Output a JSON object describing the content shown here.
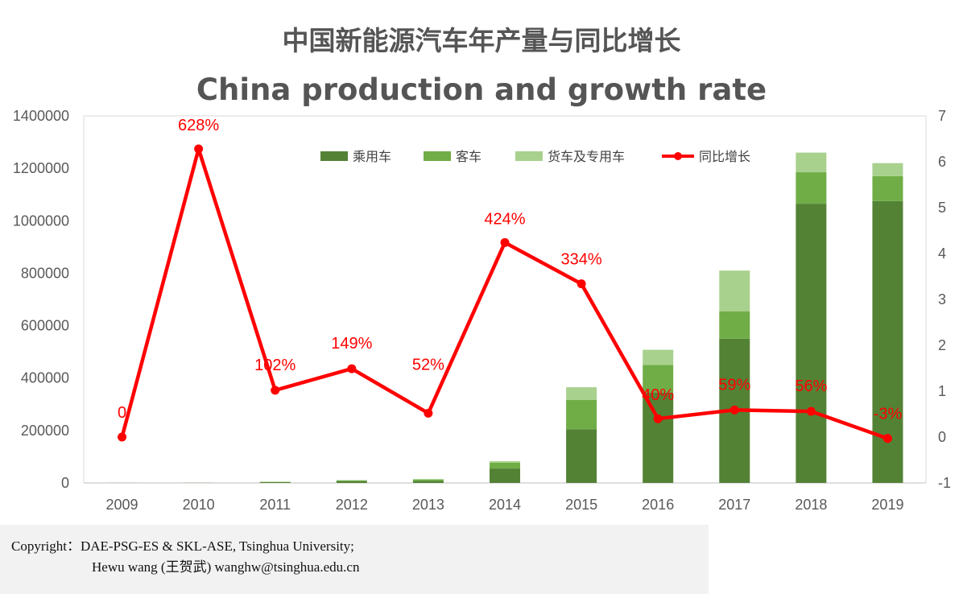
{
  "chart_data": {
    "type": "bar+line",
    "title": "中国新能源汽车年产量与同比增长",
    "subtitle": "China production and growth rate",
    "categories": [
      "2009",
      "2010",
      "2011",
      "2012",
      "2013",
      "2014",
      "2015",
      "2016",
      "2017",
      "2018",
      "2019"
    ],
    "series": [
      {
        "name": "乘用车",
        "type": "stacked-bar",
        "axis": "left",
        "color": "#548235",
        "values": [
          200,
          400,
          3000,
          7000,
          8000,
          55000,
          205000,
          345000,
          550000,
          1065000,
          1075000
        ]
      },
      {
        "name": "客车",
        "type": "stacked-bar",
        "axis": "left",
        "color": "#70ad47",
        "values": [
          100,
          200,
          1000,
          3000,
          5000,
          22000,
          112000,
          105000,
          105000,
          120000,
          95000
        ]
      },
      {
        "name": "货车及专用车",
        "type": "stacked-bar",
        "axis": "left",
        "color": "#a9d18e",
        "values": [
          0,
          0,
          1000,
          1000,
          2000,
          6000,
          48000,
          58000,
          155000,
          75000,
          50000
        ]
      },
      {
        "name": "同比增长",
        "type": "line",
        "axis": "right",
        "color": "#ff0000",
        "values": [
          0,
          6.28,
          1.02,
          1.49,
          0.52,
          4.24,
          3.34,
          0.4,
          0.59,
          0.56,
          -0.03
        ],
        "labels": [
          "0",
          "628%",
          "102%",
          "149%",
          "52%",
          "424%",
          "334%",
          "40%",
          "59%",
          "56%",
          "-3%"
        ]
      }
    ],
    "yleft": {
      "min": 0,
      "max": 1400000,
      "ticks": [
        "0",
        "200000",
        "400000",
        "600000",
        "800000",
        "1000000",
        "1200000",
        "1400000"
      ]
    },
    "yright": {
      "min": -1,
      "max": 7,
      "ticks": [
        "-1",
        "0",
        "1",
        "2",
        "3",
        "4",
        "5",
        "6",
        "7"
      ]
    },
    "legend": "top-right, inside plot",
    "grid": false
  },
  "copyright": {
    "line1": "Copyright：DAE-PSG-ES & SKL-ASE, Tsinghua University;",
    "line2": "Hewu wang (王贺武)  wanghw@tsinghua.edu.cn"
  }
}
